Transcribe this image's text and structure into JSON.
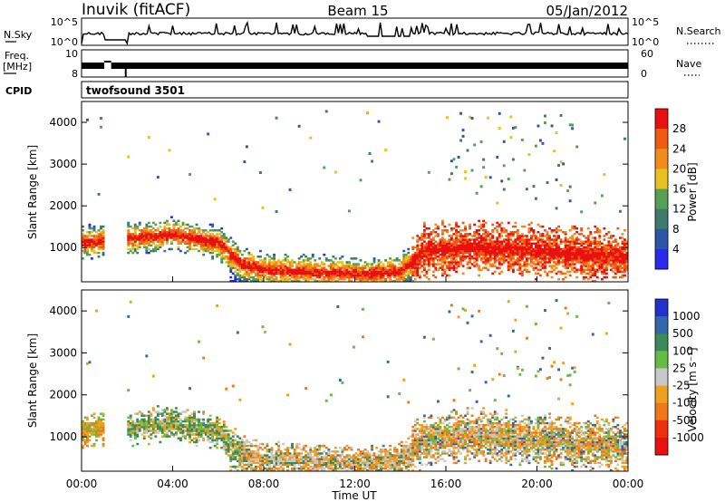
{
  "header": {
    "station": "Inuvik (fitACF)",
    "beam": "Beam 15",
    "date": "05/Jan/2012"
  },
  "noise_panel": {
    "left_label": "N.Sky",
    "left_ticks": [
      "10^5",
      "10^0"
    ],
    "right_label": "N.Search",
    "right_ticks": [
      "10^5",
      "10^0"
    ]
  },
  "freq_panel": {
    "left_label_line1": "Freq.",
    "left_label_line2": "[MHz]",
    "left_ticks": [
      "10",
      "8"
    ],
    "right_label": "Nave",
    "right_ticks": [
      "60",
      "0"
    ]
  },
  "cpid_panel": {
    "label": "CPID",
    "program": "twofsound 3501"
  },
  "x_axis": {
    "label": "Time UT",
    "ticks": [
      "00:00",
      "04:00",
      "08:00",
      "12:00",
      "16:00",
      "20:00",
      "00:00"
    ]
  },
  "power_panel": {
    "ylabel": "Slant Range [km]",
    "yticks": [
      "1000",
      "2000",
      "3000",
      "4000"
    ],
    "colorbar_label": "Power [dB]",
    "colorbar_ticks": [
      "4",
      "8",
      "12",
      "16",
      "20",
      "24",
      "28"
    ],
    "colors": [
      "#2a2aee",
      "#2f55a8",
      "#3f7a6a",
      "#55a055",
      "#e8c020",
      "#f28a1c",
      "#ee5a10",
      "#e81010"
    ]
  },
  "velocity_panel": {
    "ylabel": "Slant Range [km]",
    "yticks": [
      "1000",
      "2000",
      "3000",
      "4000"
    ],
    "colorbar_label": "Velocity [m s⁻¹]",
    "colorbar_ticks": [
      "1000",
      "500",
      "100",
      "25",
      "-25",
      "-100",
      "-500",
      "-1000"
    ],
    "colors": [
      "#2233cc",
      "#3366aa",
      "#3b8a5a",
      "#66bb44",
      "#c8c8c8",
      "#f0a020",
      "#f07818",
      "#ee3010",
      "#e81010"
    ]
  },
  "chart_data": {
    "type": "heatmap",
    "x_range_hours": [
      0,
      24
    ],
    "y_range_km": [
      180,
      4500
    ],
    "data_gap_hours": [
      1.0,
      2.0
    ],
    "power_db_range": [
      0,
      30
    ],
    "velocity_range_ms": [
      -1000,
      1000
    ],
    "main_band_center_km": [
      [
        0,
        1100
      ],
      [
        2,
        1200
      ],
      [
        4,
        1300
      ],
      [
        6,
        1100
      ],
      [
        7,
        600
      ],
      [
        8,
        450
      ],
      [
        10,
        400
      ],
      [
        12,
        350
      ],
      [
        14,
        400
      ],
      [
        15,
        900
      ],
      [
        17,
        1000
      ],
      [
        20,
        900
      ],
      [
        24,
        750
      ]
    ]
  }
}
